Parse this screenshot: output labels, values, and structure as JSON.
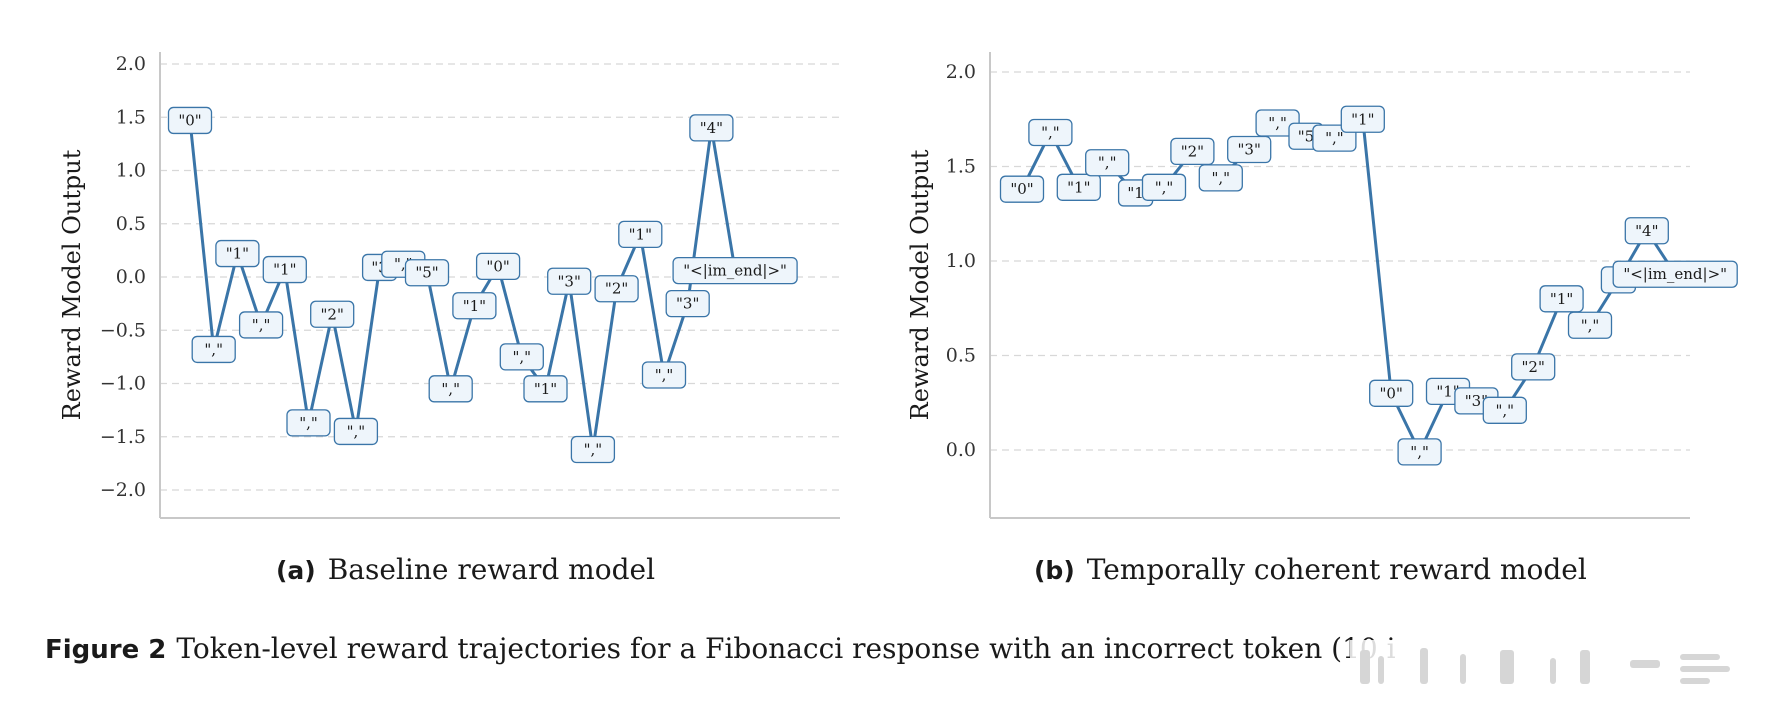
{
  "chart_data": [
    {
      "type": "line",
      "ylabel": "Reward Model Output",
      "ylim": [
        -2.2,
        2.1
      ],
      "yticks": [
        -2.0,
        -1.5,
        -1.0,
        -0.5,
        0.0,
        0.5,
        1.0,
        1.5,
        2.0
      ],
      "ytick_labels": [
        "−2.0",
        "−1.5",
        "−1.0",
        "−0.5",
        "0.0",
        "0.5",
        "1.0",
        "1.5",
        "2.0"
      ],
      "grid": "horizontal dashed",
      "tokens": [
        "\"0\"",
        "\",\"",
        "\"1\"",
        "\",\"",
        "\"1\"",
        "\",\"",
        "\"2\"",
        "\",\"",
        "\"3",
        "\",\"",
        "\"5\"",
        "\",\"",
        "\"1\"",
        "\"0\"",
        "\",\"",
        "\"1\"",
        "\"3\"",
        "\",\"",
        "\"2\"",
        "\"1\"",
        "\",\"",
        "\"3\"",
        "\"4\"",
        "\"<|im_end|>\""
      ],
      "values": [
        1.47,
        -0.68,
        0.22,
        -0.45,
        0.07,
        -1.37,
        -0.35,
        -1.45,
        0.09,
        0.12,
        0.04,
        -1.05,
        -0.27,
        0.1,
        -0.75,
        -1.05,
        -0.04,
        -1.62,
        -0.11,
        0.4,
        -0.92,
        -0.25,
        1.4,
        0.06
      ],
      "caption_label": "(a)",
      "caption": "Baseline reward model"
    },
    {
      "type": "line",
      "ylabel": "Reward Model Output",
      "ylim": [
        -0.35,
        2.1
      ],
      "yticks": [
        0.0,
        0.5,
        1.0,
        1.5,
        2.0
      ],
      "ytick_labels": [
        "0.0",
        "0.5",
        "1.0",
        "1.5",
        "2.0"
      ],
      "grid": "horizontal dashed",
      "tokens": [
        "\"0\"",
        "\",\"",
        "\"1\"",
        "\",\"",
        "\"1",
        "\",\"",
        "\"2\"",
        "\",\"",
        "\"3\"",
        "\",\"",
        "\"5",
        "\",\"",
        "\"1\"",
        "\"0\"",
        "\",\"",
        "\"1\"",
        "\"3\"",
        "\",\"",
        "\"2\"",
        "\"1\"",
        "\",\"",
        "\"\"",
        "\"4\"",
        "\"<|im_end|>\""
      ],
      "values": [
        1.38,
        1.68,
        1.39,
        1.52,
        1.36,
        1.39,
        1.58,
        1.44,
        1.59,
        1.73,
        1.66,
        1.65,
        1.75,
        0.3,
        -0.01,
        0.31,
        0.26,
        0.21,
        0.44,
        0.8,
        0.66,
        0.9,
        1.16,
        0.93
      ],
      "caption_label": "(b)",
      "caption": "Temporally coherent reward model"
    }
  ],
  "figure_caption": {
    "label": "Figure 2",
    "text": "Token-level reward trajectories for a Fibonacci response with an incorrect token (10 i"
  },
  "colors": {
    "line": "#3a75a8",
    "box_fill": "#eef5fb",
    "box_edge": "#3a75a8",
    "grid": "#d8d8d8",
    "axis": "#c8c8c8"
  }
}
